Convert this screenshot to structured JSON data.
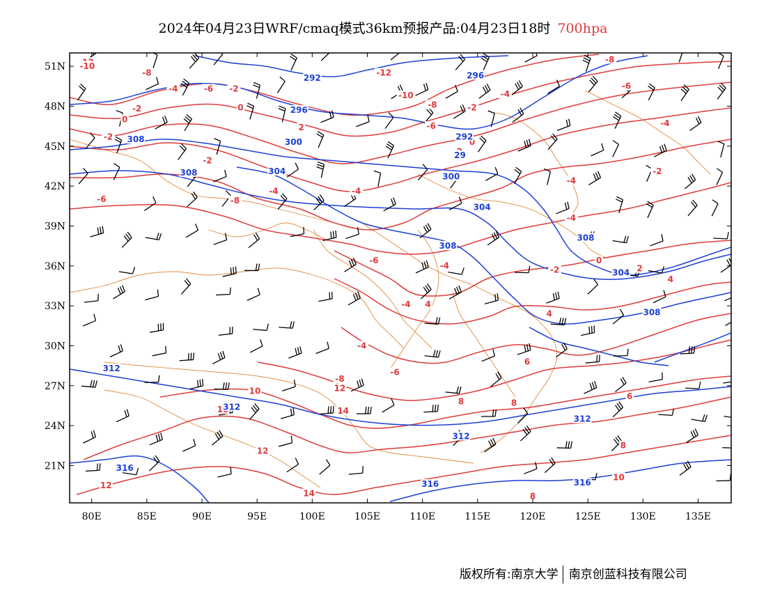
{
  "title": {
    "main": "2024年04月23日WRF/cmaq模式36km预报产品:04月23日18时",
    "level": "700hpa",
    "level_color": "#e03a3a"
  },
  "map": {
    "lon_range": [
      78,
      138
    ],
    "lat_range": [
      18.2,
      52
    ],
    "lat_ticks": [
      "51N",
      "48N",
      "45N",
      "42N",
      "39N",
      "36N",
      "33N",
      "30N",
      "27N",
      "24N",
      "21N"
    ],
    "lat_values": [
      51,
      48,
      45,
      42,
      39,
      36,
      33,
      30,
      27,
      24,
      21
    ],
    "lon_ticks": [
      "80E",
      "85E",
      "90E",
      "95E",
      "100E",
      "105E",
      "110E",
      "115E",
      "120E",
      "125E",
      "130E",
      "135E"
    ],
    "lon_values": [
      80,
      85,
      90,
      95,
      100,
      105,
      110,
      115,
      120,
      125,
      130,
      135
    ],
    "temperature_color": "#e03a3a",
    "height_color": "#1c3fd6",
    "border_color": "#e08a3a",
    "barb_color": "#000000",
    "temperature_labels": [
      {
        "text": "-12",
        "lon": 79.5,
        "lat": 51.2
      },
      {
        "text": "-10",
        "lon": 79.6,
        "lat": 50.9
      },
      {
        "text": "-8",
        "lon": 85.0,
        "lat": 50.4
      },
      {
        "text": "-6",
        "lon": 90.6,
        "lat": 49.2
      },
      {
        "text": "-4",
        "lon": 87.4,
        "lat": 49.2
      },
      {
        "text": "-2",
        "lon": 92.9,
        "lat": 49.2
      },
      {
        "text": "-2",
        "lon": 84.1,
        "lat": 47.7
      },
      {
        "text": "0",
        "lon": 93.5,
        "lat": 47.8
      },
      {
        "text": "0",
        "lon": 83.0,
        "lat": 46.9
      },
      {
        "text": "-2",
        "lon": 81.5,
        "lat": 45.6
      },
      {
        "text": "2",
        "lon": 99.0,
        "lat": 46.3
      },
      {
        "text": "-2",
        "lon": 90.5,
        "lat": 43.8
      },
      {
        "text": "-4",
        "lon": 96.5,
        "lat": 41.5
      },
      {
        "text": "-4",
        "lon": 104.0,
        "lat": 41.5
      },
      {
        "text": "-6",
        "lon": 80.9,
        "lat": 40.9
      },
      {
        "text": "-8",
        "lon": 93.0,
        "lat": 40.8
      },
      {
        "text": "-12",
        "lon": 106.5,
        "lat": 50.4
      },
      {
        "text": "-10",
        "lon": 108.5,
        "lat": 48.7
      },
      {
        "text": "-8",
        "lon": 110.9,
        "lat": 48.0
      },
      {
        "text": "-6",
        "lon": 110.8,
        "lat": 46.4
      },
      {
        "text": "-2",
        "lon": 114.5,
        "lat": 47.8
      },
      {
        "text": "0",
        "lon": 114.5,
        "lat": 45.2
      },
      {
        "text": "-2",
        "lon": 113.2,
        "lat": 44.5
      },
      {
        "text": "-4",
        "lon": 117.5,
        "lat": 48.8
      },
      {
        "text": "-8",
        "lon": 127.0,
        "lat": 51.4
      },
      {
        "text": "-6",
        "lon": 128.5,
        "lat": 49.4
      },
      {
        "text": "-4",
        "lon": 132.0,
        "lat": 46.6
      },
      {
        "text": "-2",
        "lon": 131.3,
        "lat": 43.0
      },
      {
        "text": "-4",
        "lon": 123.5,
        "lat": 42.3
      },
      {
        "text": "-4",
        "lon": 123.5,
        "lat": 39.5
      },
      {
        "text": "0",
        "lon": 126.0,
        "lat": 36.3
      },
      {
        "text": "-2",
        "lon": 122.0,
        "lat": 35.6
      },
      {
        "text": "2",
        "lon": 129.7,
        "lat": 35.7
      },
      {
        "text": "-4",
        "lon": 112.0,
        "lat": 35.9
      },
      {
        "text": "-6",
        "lon": 105.6,
        "lat": 36.3
      },
      {
        "text": "-4",
        "lon": 108.5,
        "lat": 33.0
      },
      {
        "text": "4",
        "lon": 132.5,
        "lat": 34.9
      },
      {
        "text": "4",
        "lon": 121.5,
        "lat": 32.3
      },
      {
        "text": "-4",
        "lon": 104.5,
        "lat": 29.9
      },
      {
        "text": "-6",
        "lon": 107.5,
        "lat": 27.9
      },
      {
        "text": "6",
        "lon": 119.5,
        "lat": 28.7
      },
      {
        "text": "6",
        "lon": 128.8,
        "lat": 26.1
      },
      {
        "text": "8",
        "lon": 113.5,
        "lat": 25.7
      },
      {
        "text": "8",
        "lon": 118.3,
        "lat": 25.6
      },
      {
        "text": "-8",
        "lon": 102.5,
        "lat": 27.4
      },
      {
        "text": "12",
        "lon": 102.5,
        "lat": 26.7
      },
      {
        "text": "10",
        "lon": 94.8,
        "lat": 26.5
      },
      {
        "text": "12",
        "lon": 91.9,
        "lat": 25.1
      },
      {
        "text": "14",
        "lon": 102.8,
        "lat": 25.0
      },
      {
        "text": "12",
        "lon": 95.5,
        "lat": 22.0
      },
      {
        "text": "12",
        "lon": 81.3,
        "lat": 19.4
      },
      {
        "text": "14",
        "lon": 99.7,
        "lat": 18.8
      },
      {
        "text": "8",
        "lon": 128.2,
        "lat": 22.4
      },
      {
        "text": "10",
        "lon": 127.8,
        "lat": 20.0
      },
      {
        "text": "8",
        "lon": 120.0,
        "lat": 18.6
      },
      {
        "text": "4",
        "lon": 110.5,
        "lat": 33.0
      }
    ],
    "height_labels": [
      {
        "text": "292",
        "lon": 100.0,
        "lat": 50.0
      },
      {
        "text": "296",
        "lon": 114.8,
        "lat": 50.2
      },
      {
        "text": "296",
        "lon": 98.8,
        "lat": 47.6
      },
      {
        "text": "292",
        "lon": 113.8,
        "lat": 45.6
      },
      {
        "text": "300",
        "lon": 98.3,
        "lat": 45.2
      },
      {
        "text": "29",
        "lon": 113.4,
        "lat": 44.2
      },
      {
        "text": "300",
        "lon": 112.6,
        "lat": 42.6
      },
      {
        "text": "308",
        "lon": 84.0,
        "lat": 45.4
      },
      {
        "text": "308",
        "lon": 88.8,
        "lat": 42.9
      },
      {
        "text": "304",
        "lon": 96.8,
        "lat": 43.0
      },
      {
        "text": "304",
        "lon": 115.4,
        "lat": 40.3
      },
      {
        "text": "308",
        "lon": 112.3,
        "lat": 37.4
      },
      {
        "text": "308",
        "lon": 124.8,
        "lat": 38.0
      },
      {
        "text": "304",
        "lon": 128.0,
        "lat": 35.4
      },
      {
        "text": "308",
        "lon": 130.8,
        "lat": 32.4
      },
      {
        "text": "312",
        "lon": 81.8,
        "lat": 28.2
      },
      {
        "text": "312",
        "lon": 92.7,
        "lat": 25.3
      },
      {
        "text": "312",
        "lon": 113.5,
        "lat": 23.1
      },
      {
        "text": "312",
        "lon": 124.5,
        "lat": 24.4
      },
      {
        "text": "316",
        "lon": 83.0,
        "lat": 20.7
      },
      {
        "text": "316",
        "lon": 110.7,
        "lat": 19.5
      },
      {
        "text": "316",
        "lon": 124.5,
        "lat": 19.6
      }
    ]
  },
  "footer": {
    "left": "版权所有:南京大学",
    "right": "南京创蓝科技有限公司"
  }
}
